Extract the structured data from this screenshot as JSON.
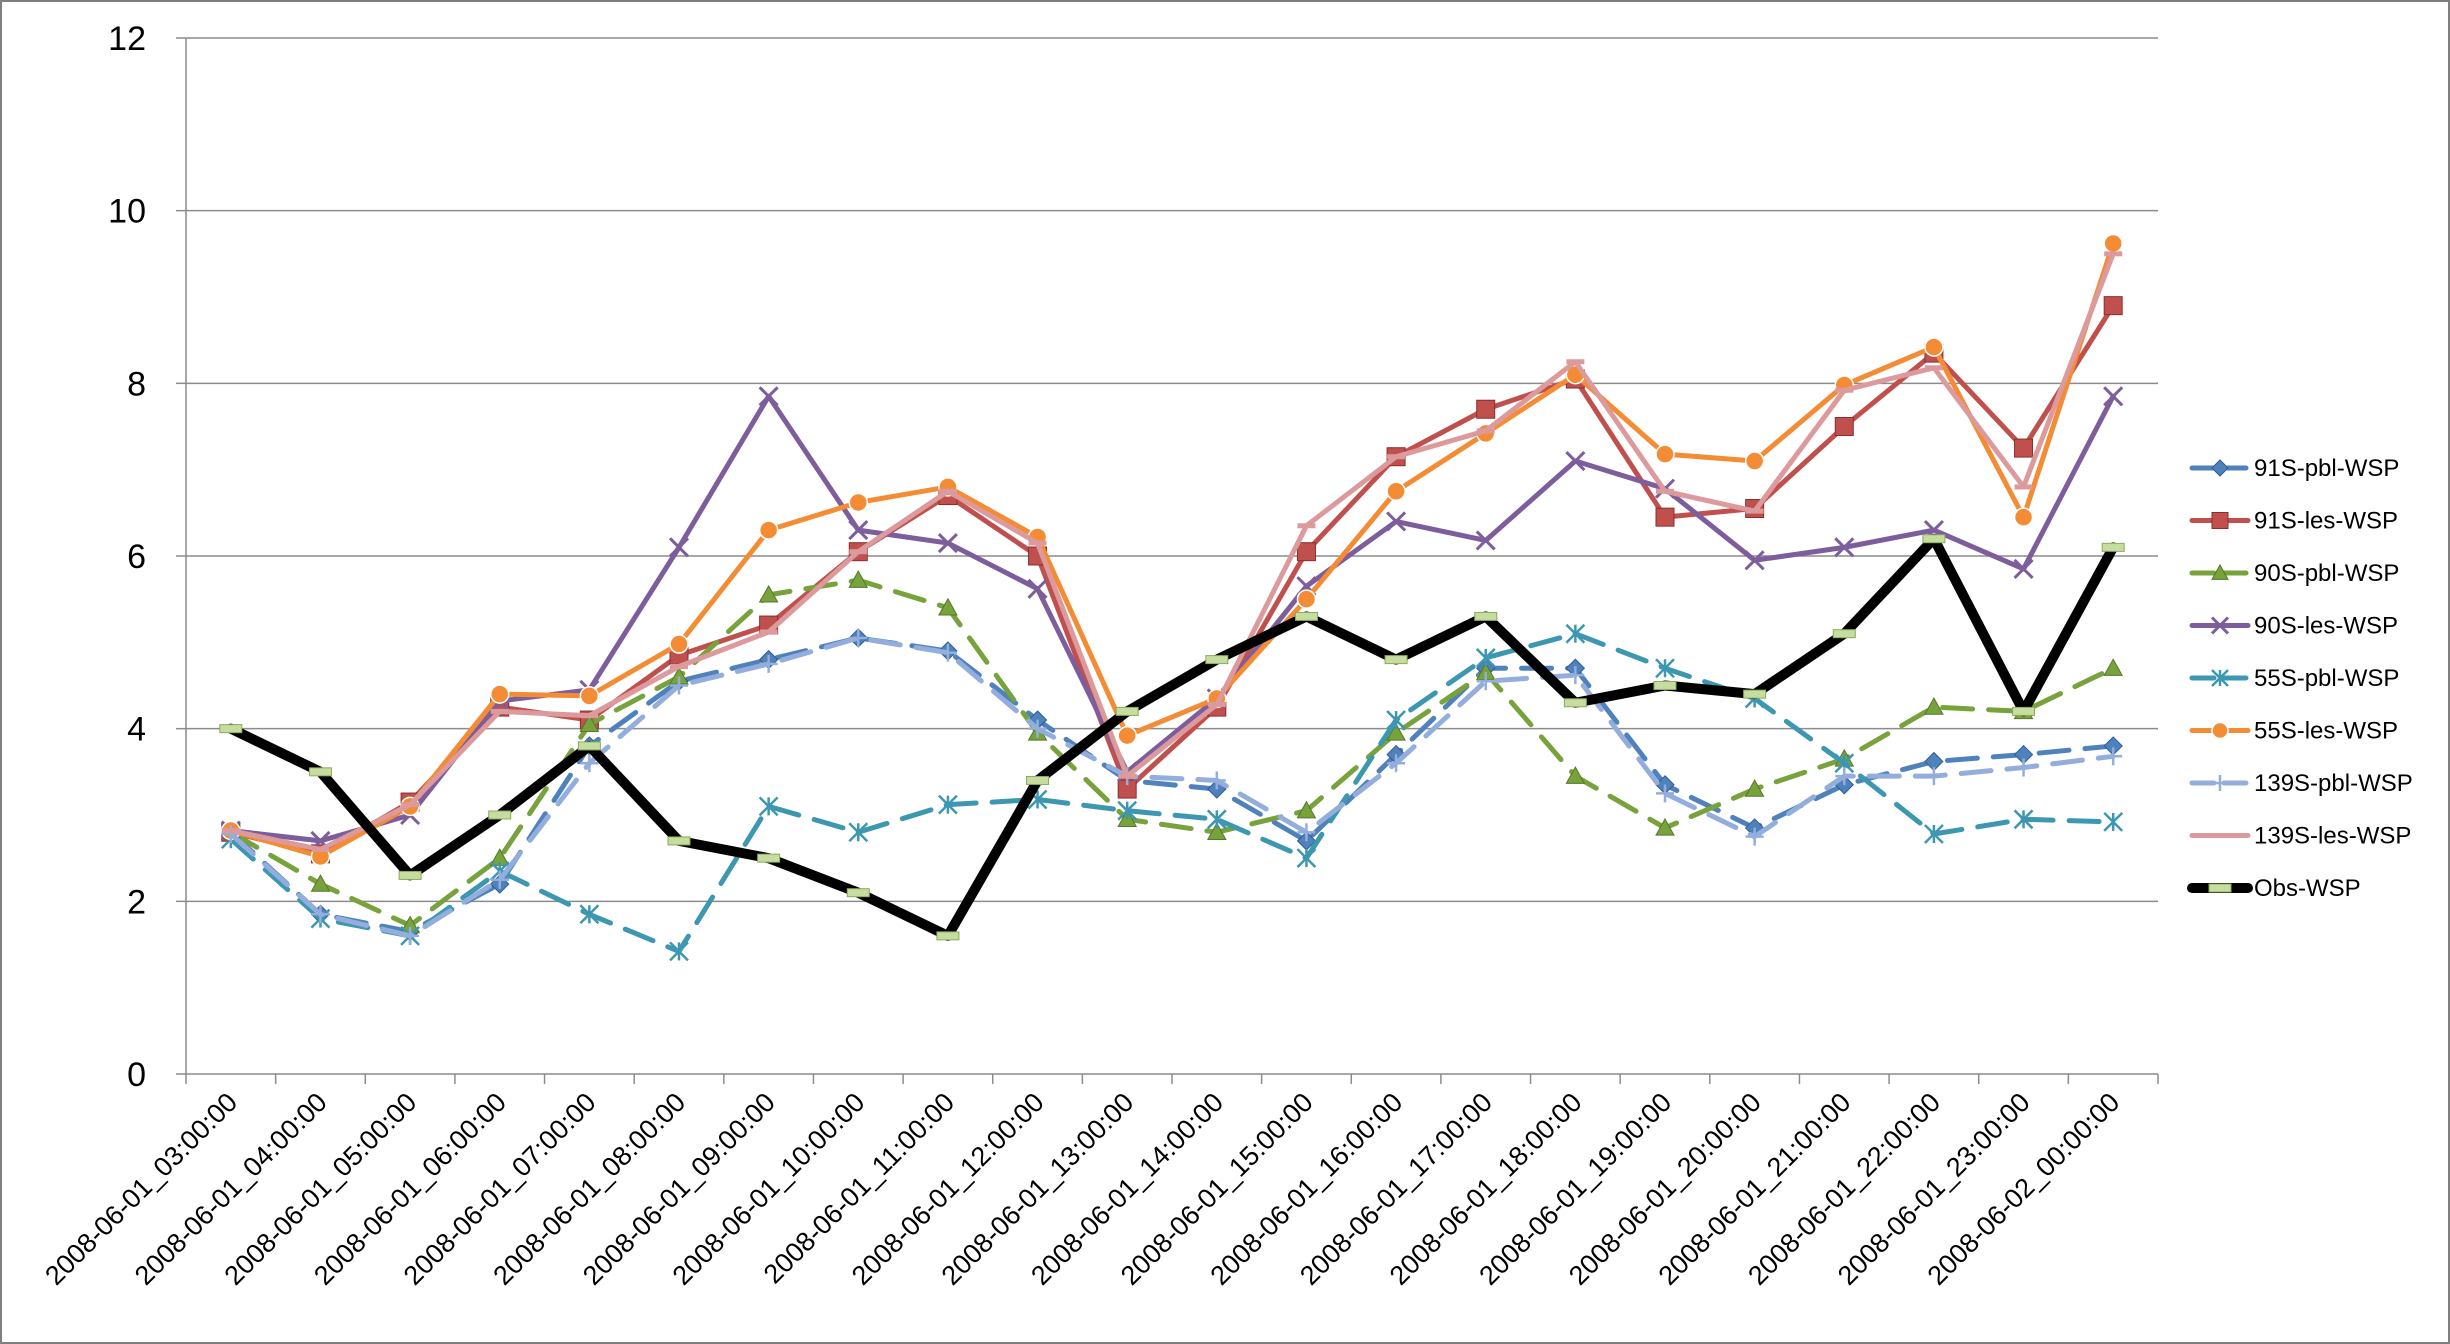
{
  "chart_data": {
    "type": "line",
    "title": "",
    "xlabel": "",
    "ylabel": "",
    "ylim": [
      0,
      12
    ],
    "yticks": [
      "0",
      "2",
      "4",
      "6",
      "8",
      "10",
      "12"
    ],
    "grid": "horizontal",
    "legend_position": "right",
    "categories": [
      "2008-06-01_03:00:00",
      "2008-06-01_04:00:00",
      "2008-06-01_05:00:00",
      "2008-06-01_06:00:00",
      "2008-06-01_07:00:00",
      "2008-06-01_08:00:00",
      "2008-06-01_09:00:00",
      "2008-06-01_10:00:00",
      "2008-06-01_11:00:00",
      "2008-06-01_12:00:00",
      "2008-06-01_13:00:00",
      "2008-06-01_14:00:00",
      "2008-06-01_15:00:00",
      "2008-06-01_16:00:00",
      "2008-06-01_17:00:00",
      "2008-06-01_18:00:00",
      "2008-06-01_19:00:00",
      "2008-06-01_20:00:00",
      "2008-06-01_21:00:00",
      "2008-06-01_22:00:00",
      "2008-06-01_23:00:00",
      "2008-06-02_00:00:00"
    ],
    "series": [
      {
        "name": "91S-pbl-WSP",
        "color": "#4f81bd",
        "dash": "long",
        "marker": "diamond",
        "values": [
          2.8,
          1.85,
          1.65,
          2.2,
          3.8,
          4.55,
          4.8,
          5.05,
          4.9,
          4.1,
          3.4,
          3.3,
          2.7,
          3.7,
          4.7,
          4.7,
          3.35,
          2.85,
          3.35,
          3.62,
          3.7,
          3.8
        ]
      },
      {
        "name": "91S-les-WSP",
        "color": "#c0504d",
        "dash": "solid",
        "marker": "square",
        "values": [
          2.8,
          2.55,
          3.15,
          4.25,
          4.1,
          4.85,
          5.2,
          6.05,
          6.7,
          6.0,
          3.3,
          4.25,
          6.05,
          7.15,
          7.7,
          8.05,
          6.45,
          6.55,
          7.5,
          8.35,
          7.25,
          8.9
        ]
      },
      {
        "name": "90S-pbl-WSP",
        "color": "#77a23c",
        "dash": "long",
        "marker": "triangle",
        "values": [
          2.8,
          2.2,
          1.72,
          2.5,
          4.05,
          4.6,
          5.55,
          5.72,
          5.4,
          3.95,
          2.95,
          2.8,
          3.05,
          3.95,
          4.65,
          3.45,
          2.85,
          3.3,
          3.65,
          4.25,
          4.2,
          4.7
        ]
      },
      {
        "name": "90S-les-WSP",
        "color": "#7d5d9c",
        "dash": "solid",
        "marker": "x",
        "values": [
          2.82,
          2.7,
          3.0,
          4.32,
          4.45,
          6.1,
          7.85,
          6.3,
          6.15,
          5.62,
          3.5,
          4.35,
          5.65,
          6.4,
          6.18,
          7.1,
          6.78,
          5.95,
          6.1,
          6.3,
          5.85,
          7.85
        ]
      },
      {
        "name": "55S-pbl-WSP",
        "color": "#3d97b1",
        "dash": "long",
        "marker": "star",
        "values": [
          2.72,
          1.8,
          1.6,
          2.35,
          1.85,
          1.42,
          3.1,
          2.8,
          3.12,
          3.18,
          3.05,
          2.95,
          2.5,
          4.1,
          4.82,
          5.1,
          4.7,
          4.35,
          3.6,
          2.78,
          2.95,
          2.92
        ]
      },
      {
        "name": "55S-les-WSP",
        "color": "#f38c34",
        "dash": "solid",
        "marker": "circle",
        "values": [
          2.82,
          2.52,
          3.1,
          4.4,
          4.38,
          4.98,
          6.3,
          6.62,
          6.8,
          6.22,
          3.92,
          4.35,
          5.5,
          6.75,
          7.42,
          8.1,
          7.18,
          7.1,
          7.98,
          8.42,
          6.45,
          9.62
        ]
      },
      {
        "name": "139S-pbl-WSP",
        "color": "#93aedc",
        "dash": "long",
        "marker": "plus",
        "values": [
          2.78,
          1.85,
          1.6,
          2.25,
          3.6,
          4.5,
          4.75,
          5.05,
          4.88,
          4.0,
          3.45,
          3.4,
          2.8,
          3.6,
          4.55,
          4.62,
          3.25,
          2.75,
          3.45,
          3.45,
          3.55,
          3.68
        ]
      },
      {
        "name": "139S-les-WSP",
        "color": "#dc9a9c",
        "dash": "solid",
        "marker": "bar",
        "values": [
          2.82,
          2.6,
          3.12,
          4.2,
          4.15,
          4.72,
          5.12,
          6.05,
          6.75,
          6.15,
          3.45,
          4.28,
          6.35,
          7.15,
          7.45,
          8.25,
          6.75,
          6.52,
          7.92,
          8.18,
          6.8,
          9.5
        ]
      },
      {
        "name": "Obs-WSP",
        "color": "#000000",
        "dash": "solid",
        "marker": "dash",
        "thick": true,
        "values": [
          4.0,
          3.5,
          2.3,
          3.0,
          3.8,
          2.7,
          2.5,
          2.1,
          1.6,
          3.4,
          4.2,
          4.8,
          5.3,
          4.8,
          5.3,
          4.3,
          4.5,
          4.4,
          5.1,
          6.2,
          4.2,
          6.1
        ]
      }
    ]
  }
}
